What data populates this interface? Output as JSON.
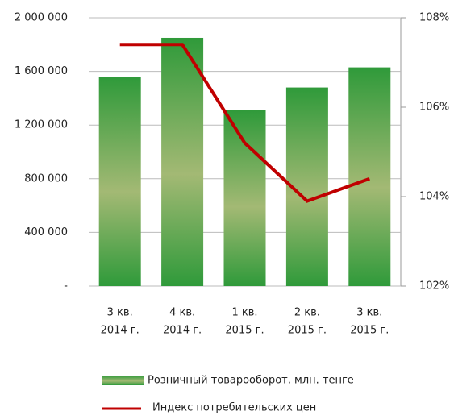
{
  "chart_data": {
    "type": "bar_line",
    "categories": [
      [
        "3 кв.",
        "2014 г."
      ],
      [
        "4 кв.",
        "2014 г."
      ],
      [
        "1 кв.",
        "2015 г."
      ],
      [
        "2 кв.",
        "2015 г."
      ],
      [
        "3 кв.",
        "2015 г."
      ]
    ],
    "series": [
      {
        "name": "Розничный товарооборот, млн. тенге",
        "type": "bar",
        "color": "#2f9a3a",
        "values": [
          1560000,
          1850000,
          1310000,
          1480000,
          1630000
        ]
      },
      {
        "name": "Индекс потребительских цен",
        "type": "line",
        "axis": "y2",
        "color": "#c00000",
        "values": [
          107.4,
          107.4,
          105.2,
          103.9,
          104.4
        ]
      }
    ],
    "ylim": [
      0,
      2000000
    ],
    "yticks": [
      {
        "value": 0,
        "label": "-"
      },
      {
        "value": 400000,
        "label": "400 000"
      },
      {
        "value": 800000,
        "label": "800 000"
      },
      {
        "value": 1200000,
        "label": "1 200 000"
      },
      {
        "value": 1600000,
        "label": "1 600 000"
      },
      {
        "value": 2000000,
        "label": "2 000 000"
      }
    ],
    "y2lim": [
      102,
      108
    ],
    "y2ticks": [
      {
        "value": 102,
        "label": "102%"
      },
      {
        "value": 104,
        "label": "104%"
      },
      {
        "value": 106,
        "label": "106%"
      },
      {
        "value": 108,
        "label": "108%"
      }
    ],
    "grid": true
  }
}
